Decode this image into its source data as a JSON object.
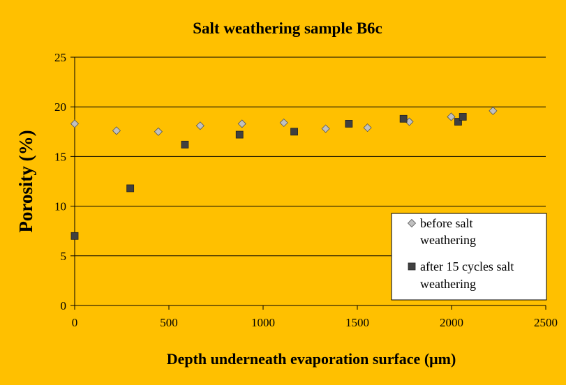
{
  "chart_data": {
    "type": "scatter",
    "title": "Salt weathering sample B6c",
    "xlabel": "Depth underneath evaporation surface (μm)",
    "ylabel": "Porosity (%)",
    "xlim": [
      0,
      2500
    ],
    "ylim": [
      0,
      25
    ],
    "x_ticks": [
      "0",
      "500",
      "1000",
      "1500",
      "2000",
      "2500"
    ],
    "y_ticks": [
      "0",
      "5",
      "10",
      "15",
      "20",
      "25"
    ],
    "grid": "horizontal",
    "legend_position": "right",
    "series": [
      {
        "name_lines": [
          "before salt",
          "weathering"
        ],
        "marker": "diamond",
        "color": "#C0C0C0",
        "points": [
          {
            "x": 0,
            "y": 18.3
          },
          {
            "x": 222,
            "y": 17.6
          },
          {
            "x": 444,
            "y": 17.5
          },
          {
            "x": 666,
            "y": 18.1
          },
          {
            "x": 888,
            "y": 18.3
          },
          {
            "x": 1110,
            "y": 18.4
          },
          {
            "x": 1332,
            "y": 17.8
          },
          {
            "x": 1554,
            "y": 17.9
          },
          {
            "x": 1776,
            "y": 18.5
          },
          {
            "x": 1998,
            "y": 19.0
          },
          {
            "x": 2220,
            "y": 19.6
          }
        ]
      },
      {
        "name_lines": [
          "after 15 cycles salt",
          "weathering"
        ],
        "marker": "square",
        "color": "#404040",
        "points": [
          {
            "x": 0,
            "y": 7.0
          },
          {
            "x": 295,
            "y": 11.8
          },
          {
            "x": 585,
            "y": 16.2
          },
          {
            "x": 875,
            "y": 17.2
          },
          {
            "x": 1165,
            "y": 17.5
          },
          {
            "x": 1455,
            "y": 18.3
          },
          {
            "x": 1745,
            "y": 18.8
          },
          {
            "x": 2035,
            "y": 18.5
          },
          {
            "x": 2060,
            "y": 19.0
          }
        ]
      }
    ]
  }
}
